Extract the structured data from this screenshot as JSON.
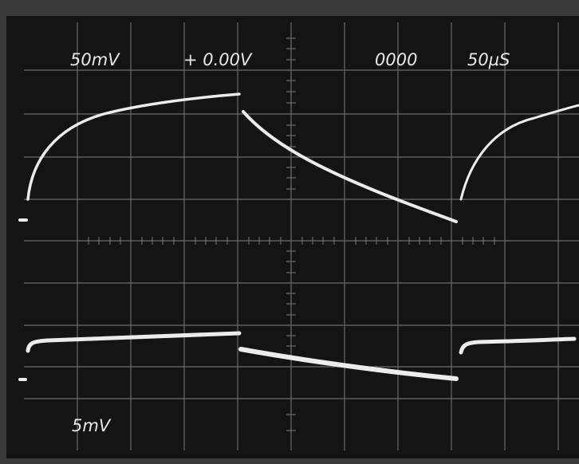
{
  "header": {
    "channel1_scale": "50mV",
    "offset": "+ 0.00V",
    "counter": "0000",
    "timebase": "50µS"
  },
  "footer": {
    "channel2_scale": "5mV"
  }
}
